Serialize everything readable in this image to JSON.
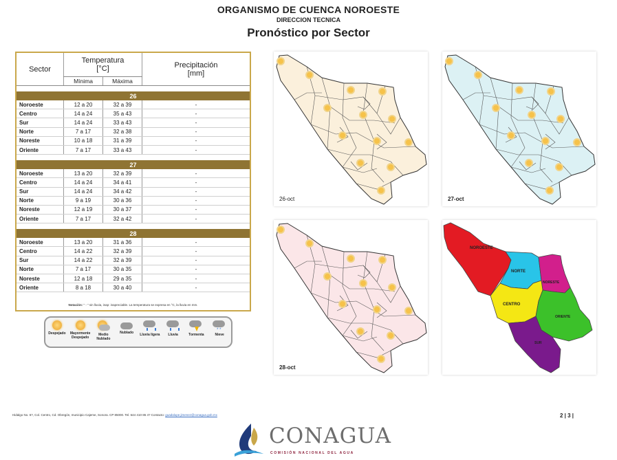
{
  "header": {
    "org": "ORGANISMO DE CUENCA NOROESTE",
    "direction": "DIRECCION TECNICA",
    "title": "Pronóstico por Sector"
  },
  "table": {
    "headers": {
      "sector": "Sector",
      "temperature": "Temperatura",
      "temp_unit": "[°C]",
      "min": "Mínima",
      "max": "Máxima",
      "precip": "Precipitación",
      "precip_unit": "[mm]"
    },
    "days": [
      {
        "label": "26",
        "rows": [
          {
            "sector": "Noroeste",
            "min": "12 a 20",
            "max": "32 a 39",
            "precip": "-"
          },
          {
            "sector": "Centro",
            "min": "14 a 24",
            "max": "35 a 43",
            "precip": "-"
          },
          {
            "sector": "Sur",
            "min": "14 a 24",
            "max": "33 a 43",
            "precip": "-"
          },
          {
            "sector": "Norte",
            "min": "7 a 17",
            "max": "32 a 38",
            "precip": "-"
          },
          {
            "sector": "Noreste",
            "min": "10 a 18",
            "max": "31 a 39",
            "precip": "-"
          },
          {
            "sector": "Oriente",
            "min": "7 a 17",
            "max": "33 a 43",
            "precip": "-"
          }
        ]
      },
      {
        "label": "27",
        "rows": [
          {
            "sector": "Noroeste",
            "min": "13 a 20",
            "max": "32 a 39",
            "precip": "-"
          },
          {
            "sector": "Centro",
            "min": "14 a 24",
            "max": "34 a 41",
            "precip": "-"
          },
          {
            "sector": "Sur",
            "min": "14 a 24",
            "max": "34 a 42",
            "precip": "-"
          },
          {
            "sector": "Norte",
            "min": "9 a 19",
            "max": "30 a 36",
            "precip": "-"
          },
          {
            "sector": "Noreste",
            "min": "12 a 19",
            "max": "30 a 37",
            "precip": "-"
          },
          {
            "sector": "Oriente",
            "min": "7 a 17",
            "max": "32 a 42",
            "precip": "-"
          }
        ]
      },
      {
        "label": "28",
        "rows": [
          {
            "sector": "Noroeste",
            "min": "13 a 20",
            "max": "31 a 36",
            "precip": "-"
          },
          {
            "sector": "Centro",
            "min": "14 a 22",
            "max": "32 a 39",
            "precip": "-"
          },
          {
            "sector": "Sur",
            "min": "14 a 22",
            "max": "32 a 39",
            "precip": "-"
          },
          {
            "sector": "Norte",
            "min": "7 a 17",
            "max": "30 a 35",
            "precip": "-"
          },
          {
            "sector": "Noreste",
            "min": "12 a 18",
            "max": "29 a 35",
            "precip": "-"
          },
          {
            "sector": "Oriente",
            "min": "8 a 18",
            "max": "30 a 40",
            "precip": "-"
          }
        ]
      }
    ],
    "note_label": "Notación:",
    "note_text": "\" - \" sin lluvia, inap: inapreciable.  La temperatura se expresa en °C, la lluvia en mm."
  },
  "legend": [
    {
      "label": "Despejado",
      "icon": "sun-icon"
    },
    {
      "label": "Mayormente Despejado",
      "icon": "mostly-clear-icon"
    },
    {
      "label": "Medio Nublado",
      "icon": "partly-cloudy-icon"
    },
    {
      "label": "Nublado",
      "icon": "cloud-icon"
    },
    {
      "label": "Lluvia ligera",
      "icon": "light-rain-icon"
    },
    {
      "label": "Lluvia",
      "icon": "rain-icon"
    },
    {
      "label": "Tormenta",
      "icon": "storm-icon"
    },
    {
      "label": "Nieve",
      "icon": "snow-icon"
    }
  ],
  "maps": {
    "day1": {
      "caption": "26-oct",
      "fill": "#fbf0dc"
    },
    "day2": {
      "caption": "27-oct",
      "fill": "#dcf1f4"
    },
    "day3": {
      "caption": "28-oct",
      "fill": "#fbe6e8"
    },
    "sectors": {
      "noroeste": {
        "label": "NOROESTE",
        "color": "#e31b23"
      },
      "norte": {
        "label": "NORTE",
        "color": "#29c4e8"
      },
      "noreste": {
        "label": "NORESTE",
        "color": "#d21f8c"
      },
      "centro": {
        "label": "CENTRO",
        "color": "#f4e714"
      },
      "oriente": {
        "label": "ORIENTE",
        "color": "#3cc12a"
      },
      "sur": {
        "label": "SUR",
        "color": "#7a1a8c"
      }
    }
  },
  "footer": {
    "address": "Hidalgo No. 6?, Col. Centro, Cd. Obregón, municipio Cajeme, Sonora. CP 85000. Tel. 644 410 86 4?  Contacto: ",
    "email": "guadalupe.jimenez@conagua.gob.mx",
    "page": "2 | 3 |",
    "logo": "CONAGUA",
    "logo_sub": "COMISIÓN NACIONAL DEL AGUA"
  }
}
